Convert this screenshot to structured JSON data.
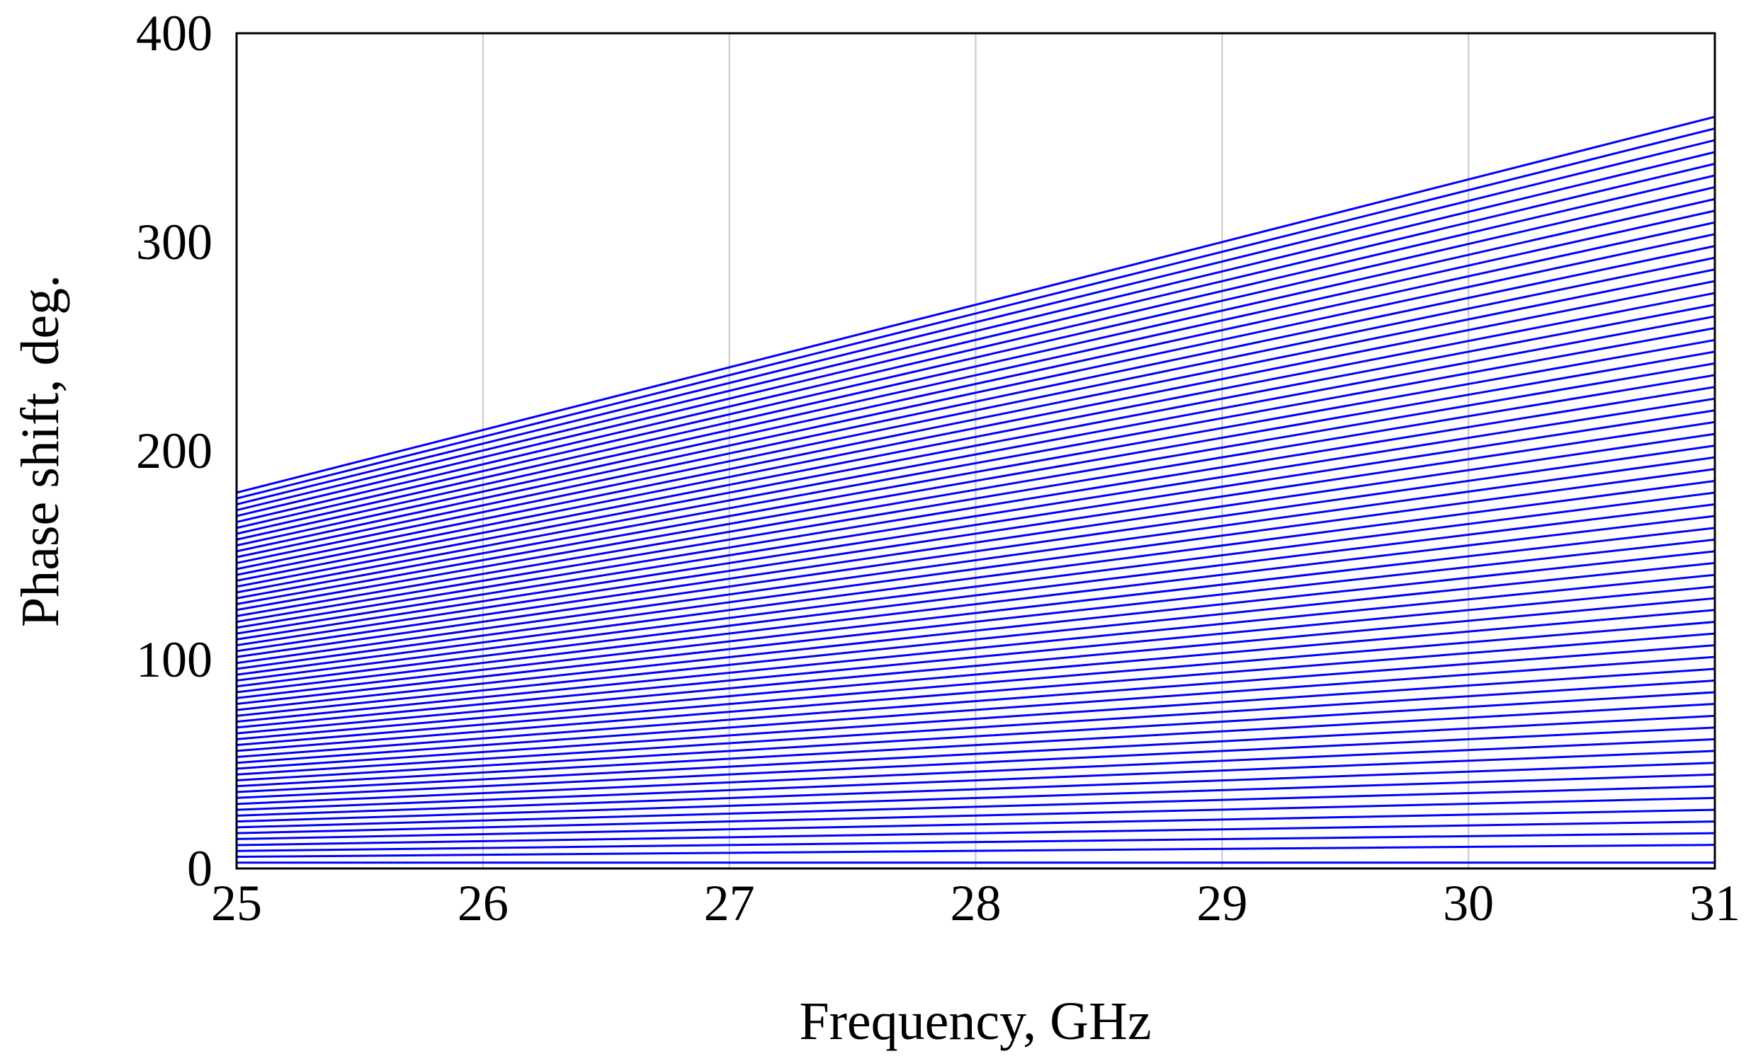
{
  "chart_data": {
    "type": "line",
    "title": "",
    "xlabel": "Frequency, GHz",
    "ylabel": "Phase shift, deg.",
    "xlim": [
      25,
      31
    ],
    "ylim": [
      0,
      400
    ],
    "xticks": [
      25,
      26,
      27,
      28,
      29,
      30,
      31
    ],
    "yticks": [
      0,
      100,
      200,
      300,
      400
    ],
    "grid": {
      "vertical": true,
      "horizontal": false
    },
    "legend": "none",
    "line_color": "#0000ff",
    "x": [
      25,
      31
    ],
    "series": [
      {
        "values": [
          2.8,
          2.8
        ]
      },
      {
        "values": [
          5.6,
          11.3
        ]
      },
      {
        "values": [
          8.4,
          16.9
        ]
      },
      {
        "values": [
          11.2,
          22.5
        ]
      },
      {
        "values": [
          14.1,
          28.1
        ]
      },
      {
        "values": [
          16.9,
          33.8
        ]
      },
      {
        "values": [
          19.7,
          39.4
        ]
      },
      {
        "values": [
          22.5,
          45.0
        ]
      },
      {
        "values": [
          25.3,
          50.6
        ]
      },
      {
        "values": [
          28.1,
          56.3
        ]
      },
      {
        "values": [
          30.9,
          61.9
        ]
      },
      {
        "values": [
          33.8,
          67.5
        ]
      },
      {
        "values": [
          36.6,
          73.1
        ]
      },
      {
        "values": [
          39.4,
          78.8
        ]
      },
      {
        "values": [
          42.2,
          84.4
        ]
      },
      {
        "values": [
          45.0,
          90.0
        ]
      },
      {
        "values": [
          47.8,
          95.6
        ]
      },
      {
        "values": [
          50.6,
          101.3
        ]
      },
      {
        "values": [
          53.4,
          106.9
        ]
      },
      {
        "values": [
          56.3,
          112.5
        ]
      },
      {
        "values": [
          59.1,
          118.1
        ]
      },
      {
        "values": [
          61.9,
          123.8
        ]
      },
      {
        "values": [
          64.7,
          129.4
        ]
      },
      {
        "values": [
          67.5,
          135.0
        ]
      },
      {
        "values": [
          70.3,
          140.6
        ]
      },
      {
        "values": [
          73.1,
          146.3
        ]
      },
      {
        "values": [
          75.9,
          151.9
        ]
      },
      {
        "values": [
          78.8,
          157.5
        ]
      },
      {
        "values": [
          81.6,
          163.1
        ]
      },
      {
        "values": [
          84.4,
          168.8
        ]
      },
      {
        "values": [
          87.2,
          174.4
        ]
      },
      {
        "values": [
          90.0,
          180.0
        ]
      },
      {
        "values": [
          92.8,
          185.6
        ]
      },
      {
        "values": [
          95.6,
          191.3
        ]
      },
      {
        "values": [
          98.4,
          196.9
        ]
      },
      {
        "values": [
          101.3,
          202.5
        ]
      },
      {
        "values": [
          104.1,
          208.1
        ]
      },
      {
        "values": [
          106.9,
          213.8
        ]
      },
      {
        "values": [
          109.7,
          219.4
        ]
      },
      {
        "values": [
          112.5,
          225.0
        ]
      },
      {
        "values": [
          115.3,
          230.6
        ]
      },
      {
        "values": [
          118.1,
          236.3
        ]
      },
      {
        "values": [
          120.9,
          241.9
        ]
      },
      {
        "values": [
          123.8,
          247.5
        ]
      },
      {
        "values": [
          126.6,
          253.1
        ]
      },
      {
        "values": [
          129.4,
          258.8
        ]
      },
      {
        "values": [
          132.2,
          264.4
        ]
      },
      {
        "values": [
          135.0,
          270.0
        ]
      },
      {
        "values": [
          137.8,
          275.6
        ]
      },
      {
        "values": [
          140.6,
          281.3
        ]
      },
      {
        "values": [
          143.4,
          286.9
        ]
      },
      {
        "values": [
          146.3,
          292.5
        ]
      },
      {
        "values": [
          149.1,
          298.1
        ]
      },
      {
        "values": [
          151.9,
          303.8
        ]
      },
      {
        "values": [
          154.7,
          309.4
        ]
      },
      {
        "values": [
          157.5,
          315.0
        ]
      },
      {
        "values": [
          160.3,
          320.6
        ]
      },
      {
        "values": [
          163.1,
          326.3
        ]
      },
      {
        "values": [
          165.9,
          331.9
        ]
      },
      {
        "values": [
          168.8,
          337.5
        ]
      },
      {
        "values": [
          171.6,
          343.1
        ]
      },
      {
        "values": [
          174.4,
          348.8
        ]
      },
      {
        "values": [
          177.2,
          354.4
        ]
      },
      {
        "values": [
          180.0,
          360.0
        ]
      }
    ]
  }
}
